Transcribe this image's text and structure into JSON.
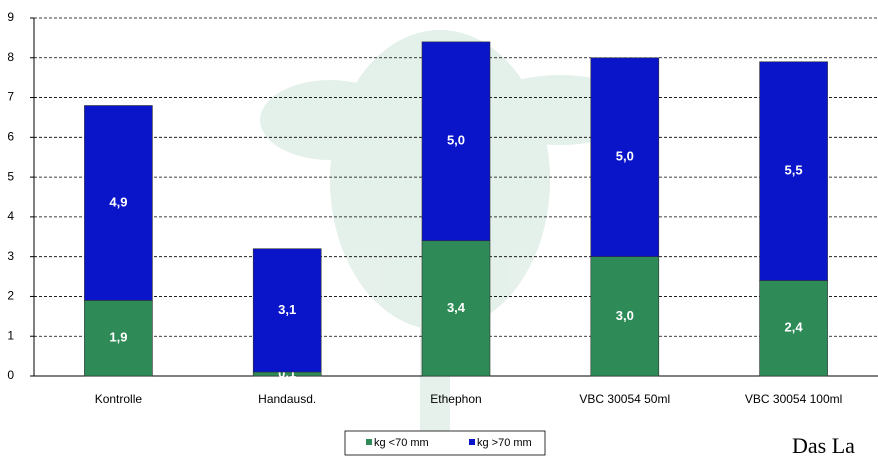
{
  "chart_data": {
    "type": "stacked_bar",
    "categories": [
      "Kontrolle",
      "Handausd.",
      "Ethephon",
      "VBC 30054 50ml",
      "VBC 30054 100ml"
    ],
    "series": [
      {
        "name": "kg <70 mm",
        "color": "#2e8b57",
        "values": [
          1.9,
          0.1,
          3.4,
          3.0,
          2.4
        ],
        "value_labels": [
          "1,9",
          "0,1",
          "3,4",
          "3,0",
          "2,4"
        ]
      },
      {
        "name": "kg >70 mm",
        "color": "#0a14c8",
        "values": [
          4.9,
          3.1,
          5.0,
          5.0,
          5.5
        ],
        "value_labels": [
          "4,9",
          "3,1",
          "5,0",
          "5,0",
          "5,5"
        ]
      }
    ],
    "ylim": [
      0,
      9
    ],
    "yticks": [
      0,
      1,
      2,
      3,
      4,
      5,
      6,
      7,
      8,
      9
    ],
    "grid": true,
    "legend": "bottom"
  },
  "logo_text": "Das La"
}
